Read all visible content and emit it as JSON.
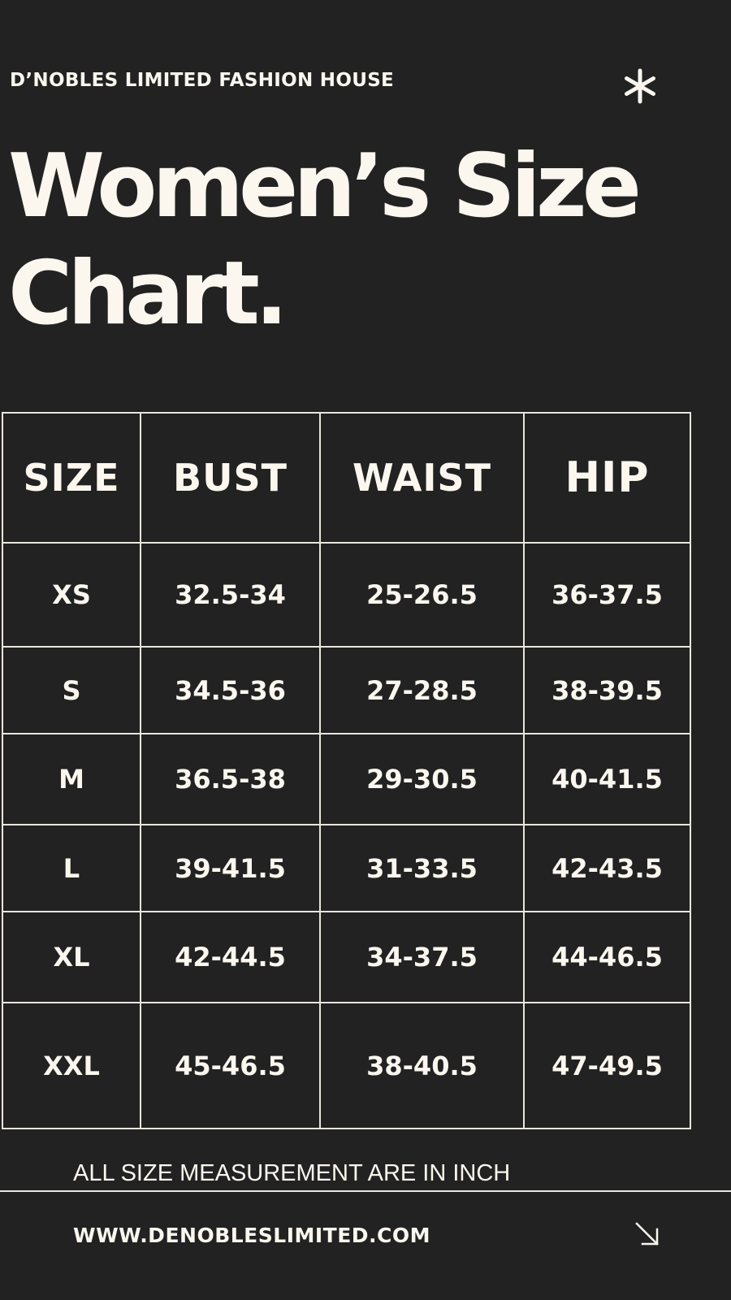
{
  "header": {
    "brand": "D’NOBLES LIMITED FASHION HOUSE",
    "icon": "asterisk-icon"
  },
  "title": {
    "line1": "Women’s Size",
    "line2": "Chart."
  },
  "table": {
    "headers": [
      "SIZE",
      "BUST",
      "WAIST",
      "HIP"
    ],
    "rows": [
      [
        "XS",
        "32.5-34",
        "25-26.5",
        "36-37.5"
      ],
      [
        "S",
        "34.5-36",
        "27-28.5",
        "38-39.5"
      ],
      [
        "M",
        "36.5-38",
        "29-30.5",
        "40-41.5"
      ],
      [
        "L",
        "39-41.5",
        "31-33.5",
        "42-43.5"
      ],
      [
        "XL",
        "42-44.5",
        "34-37.5",
        "44-46.5"
      ],
      [
        "XXL",
        "45-46.5",
        "38-40.5",
        "47-49.5"
      ]
    ]
  },
  "footer": {
    "note": "ALL SIZE MEASUREMENT ARE IN INCH",
    "website": "WWW.DENOBLESLIMITED.COM",
    "icon": "arrow-down-right-icon"
  },
  "colors": {
    "background": "#222222",
    "foreground": "#FBF7EF",
    "border": "#E9E6DF"
  }
}
